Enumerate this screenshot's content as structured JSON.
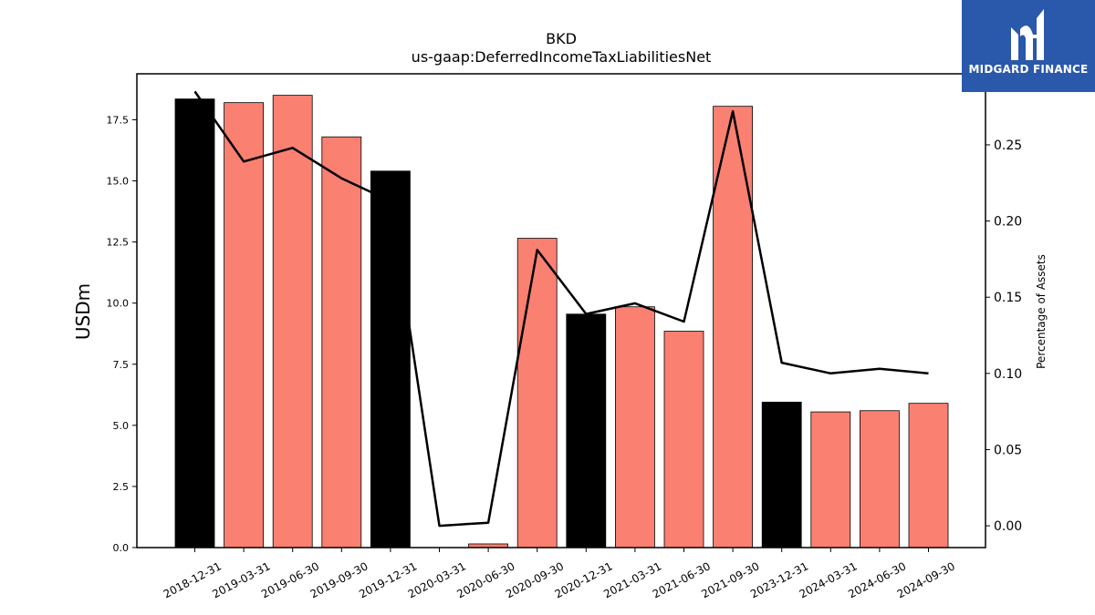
{
  "title": "BKD",
  "subtitle": "us-gaap:DeferredIncomeTaxLiabilitiesNet",
  "logo": {
    "text": "MIDGARD FINANCE"
  },
  "chart_data": {
    "type": "bar",
    "categories": [
      "2018-12-31",
      "2019-03-31",
      "2019-06-30",
      "2019-09-30",
      "2019-12-31",
      "2020-03-31",
      "2020-06-30",
      "2020-09-30",
      "2020-12-31",
      "2021-03-31",
      "2021-06-30",
      "2021-09-30",
      "2023-12-31",
      "2024-03-31",
      "2024-06-30",
      "2024-09-30"
    ],
    "series": [
      {
        "type": "bar",
        "axis": "left",
        "values": [
          18.35,
          18.2,
          18.5,
          16.8,
          15.4,
          0.0,
          0.15,
          12.65,
          9.55,
          9.85,
          8.85,
          18.05,
          5.95,
          5.55,
          5.6,
          5.9
        ]
      },
      {
        "type": "line",
        "axis": "right",
        "values": [
          0.285,
          0.239,
          0.248,
          0.228,
          0.213,
          0.0,
          0.002,
          0.181,
          0.139,
          0.146,
          0.134,
          0.272,
          0.107,
          0.1,
          0.103,
          0.1
        ]
      }
    ],
    "bar_colors": [
      "#000000",
      "#fa8072",
      "#fa8072",
      "#fa8072",
      "#000000",
      "#fa8072",
      "#fa8072",
      "#fa8072",
      "#000000",
      "#fa8072",
      "#fa8072",
      "#fa8072",
      "#000000",
      "#fa8072",
      "#fa8072",
      "#fa8072"
    ],
    "line_color": "#000000",
    "ylabel": "USDm",
    "y2label": "Percentage of Assets",
    "ylim": [
      0,
      19.38
    ],
    "y2lim": [
      -0.0143,
      0.2966
    ],
    "yticks": [
      "0.0",
      "2.5",
      "5.0",
      "7.5",
      "10.0",
      "12.5",
      "15.0",
      "17.5"
    ],
    "y2ticks": [
      "0.00",
      "0.05",
      "0.10",
      "0.15",
      "0.20",
      "0.25"
    ],
    "grid": false
  }
}
